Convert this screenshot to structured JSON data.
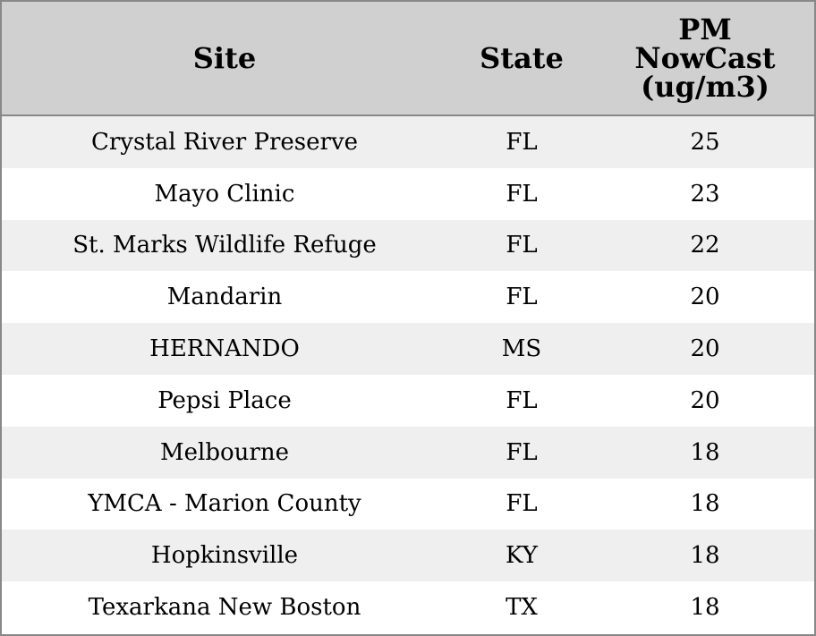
{
  "table": {
    "header": [
      "Site",
      "State",
      "PM NowCast (ug/m3)"
    ],
    "rows": [
      [
        "Crystal River Preserve",
        "FL",
        25
      ],
      [
        "Mayo Clinic",
        "FL",
        23
      ],
      [
        "St. Marks Wildlife Refuge",
        "FL",
        22
      ],
      [
        "Mandarin",
        "FL",
        20
      ],
      [
        "HERNANDO",
        "MS",
        20
      ],
      [
        "Pepsi Place",
        "FL",
        20
      ],
      [
        "Melbourne",
        "FL",
        18
      ],
      [
        "YMCA - Marion County",
        "FL",
        18
      ],
      [
        "Hopkinsville",
        "KY",
        18
      ],
      [
        "Texarkana New Boston",
        "TX",
        18
      ]
    ]
  }
}
